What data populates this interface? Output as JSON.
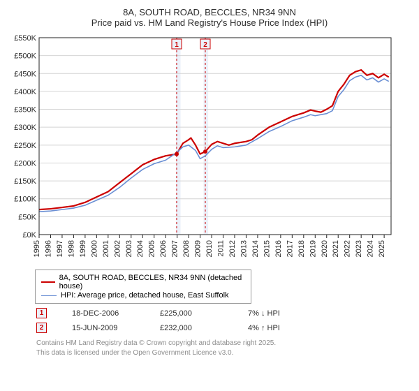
{
  "title": {
    "line1": "8A, SOUTH ROAD, BECCLES, NR34 9NN",
    "line2": "Price paid vs. HM Land Registry's House Price Index (HPI)",
    "fontsize": 13,
    "color": "#2c2c2c"
  },
  "chart": {
    "type": "line",
    "background_color": "#ffffff",
    "plot_background": "#ffffff",
    "plot_border_color": "#222222",
    "x": {
      "label_fontsize": 11,
      "ticks": [
        1995,
        1996,
        1997,
        1998,
        1999,
        2000,
        2001,
        2002,
        2003,
        2004,
        2005,
        2006,
        2007,
        2008,
        2009,
        2010,
        2011,
        2012,
        2013,
        2014,
        2015,
        2016,
        2017,
        2018,
        2019,
        2020,
        2021,
        2022,
        2023,
        2024,
        2025
      ],
      "min": 1995,
      "max": 2025.6
    },
    "y": {
      "label_fontsize": 11,
      "prefix": "£",
      "suffix": "K",
      "ticks": [
        0,
        50,
        100,
        150,
        200,
        250,
        300,
        350,
        400,
        450,
        500,
        550
      ],
      "min": 0,
      "max": 550,
      "grid_color": "#d4d4d4"
    },
    "bands": [
      {
        "from": 2006.9,
        "to": 2007.3,
        "fill": "#ecf1fa"
      },
      {
        "from": 2009.3,
        "to": 2009.7,
        "fill": "#ecf1fa"
      }
    ],
    "markers": [
      {
        "id": "1",
        "x": 2006.96,
        "y": 225,
        "box_fill": "#ecf1fa",
        "box_border": "#cc0000",
        "text_color": "#cc0000",
        "vline_color": "#cc0000"
      },
      {
        "id": "2",
        "x": 2009.45,
        "y": 232,
        "box_fill": "#ecf1fa",
        "box_border": "#cc0000",
        "text_color": "#cc0000",
        "vline_color": "#cc0000"
      }
    ],
    "series": [
      {
        "name": "8A, SOUTH ROAD, BECCLES, NR34 9NN (detached house)",
        "color": "#cc0000",
        "width": 2.2,
        "points": [
          [
            1995,
            70
          ],
          [
            1996,
            72
          ],
          [
            1997,
            76
          ],
          [
            1998,
            80
          ],
          [
            1999,
            90
          ],
          [
            2000,
            105
          ],
          [
            2001,
            120
          ],
          [
            2002,
            145
          ],
          [
            2003,
            170
          ],
          [
            2004,
            195
          ],
          [
            2005,
            210
          ],
          [
            2006,
            220
          ],
          [
            2006.96,
            225
          ],
          [
            2007.5,
            255
          ],
          [
            2008,
            265
          ],
          [
            2008.2,
            270
          ],
          [
            2008.6,
            250
          ],
          [
            2009,
            225
          ],
          [
            2009.45,
            232
          ],
          [
            2010,
            252
          ],
          [
            2010.5,
            260
          ],
          [
            2011,
            255
          ],
          [
            2011.5,
            250
          ],
          [
            2012,
            255
          ],
          [
            2013,
            260
          ],
          [
            2013.5,
            265
          ],
          [
            2014,
            278
          ],
          [
            2015,
            300
          ],
          [
            2016,
            315
          ],
          [
            2017,
            330
          ],
          [
            2017.5,
            335
          ],
          [
            2018,
            340
          ],
          [
            2018.6,
            348
          ],
          [
            2019,
            345
          ],
          [
            2019.5,
            342
          ],
          [
            2020,
            350
          ],
          [
            2020.5,
            360
          ],
          [
            2021,
            400
          ],
          [
            2021.5,
            420
          ],
          [
            2022,
            445
          ],
          [
            2022.5,
            455
          ],
          [
            2023,
            460
          ],
          [
            2023.5,
            445
          ],
          [
            2024,
            450
          ],
          [
            2024.5,
            438
          ],
          [
            2025,
            448
          ],
          [
            2025.4,
            440
          ]
        ]
      },
      {
        "name": "HPI: Average price, detached house, East Suffolk",
        "color": "#6a8fd4",
        "width": 1.6,
        "points": [
          [
            1995,
            64
          ],
          [
            1996,
            66
          ],
          [
            1997,
            70
          ],
          [
            1998,
            74
          ],
          [
            1999,
            82
          ],
          [
            2000,
            96
          ],
          [
            2001,
            110
          ],
          [
            2002,
            132
          ],
          [
            2003,
            158
          ],
          [
            2004,
            182
          ],
          [
            2005,
            198
          ],
          [
            2006,
            208
          ],
          [
            2007,
            230
          ],
          [
            2007.5,
            245
          ],
          [
            2008,
            250
          ],
          [
            2008.6,
            235
          ],
          [
            2009,
            212
          ],
          [
            2009.45,
            220
          ],
          [
            2010,
            238
          ],
          [
            2010.5,
            248
          ],
          [
            2011,
            243
          ],
          [
            2012,
            245
          ],
          [
            2013,
            250
          ],
          [
            2014,
            268
          ],
          [
            2015,
            288
          ],
          [
            2016,
            302
          ],
          [
            2017,
            318
          ],
          [
            2018,
            328
          ],
          [
            2018.6,
            335
          ],
          [
            2019,
            332
          ],
          [
            2020,
            338
          ],
          [
            2020.5,
            346
          ],
          [
            2021,
            386
          ],
          [
            2021.5,
            405
          ],
          [
            2022,
            430
          ],
          [
            2022.5,
            440
          ],
          [
            2023,
            445
          ],
          [
            2023.5,
            432
          ],
          [
            2024,
            438
          ],
          [
            2024.5,
            426
          ],
          [
            2025,
            435
          ],
          [
            2025.4,
            428
          ]
        ]
      }
    ],
    "sale_dots": {
      "color": "#cc0000",
      "radius": 3
    }
  },
  "legend": {
    "border_color": "#9a9a9a",
    "rows": [
      {
        "color": "#cc0000",
        "width": 2.5,
        "label": "8A, SOUTH ROAD, BECCLES, NR34 9NN (detached house)"
      },
      {
        "color": "#6a8fd4",
        "width": 1.8,
        "label": "HPI: Average price, detached house, East Suffolk"
      }
    ]
  },
  "sales": [
    {
      "marker": "1",
      "date": "18-DEC-2006",
      "price": "£225,000",
      "delta": "7% ↓ HPI"
    },
    {
      "marker": "2",
      "date": "15-JUN-2009",
      "price": "£232,000",
      "delta": "4% ↑ HPI"
    }
  ],
  "attribution": {
    "line1": "Contains HM Land Registry data © Crown copyright and database right 2025.",
    "line2": "This data is licensed under the Open Government Licence v3.0.",
    "color": "#8c8c8c"
  }
}
